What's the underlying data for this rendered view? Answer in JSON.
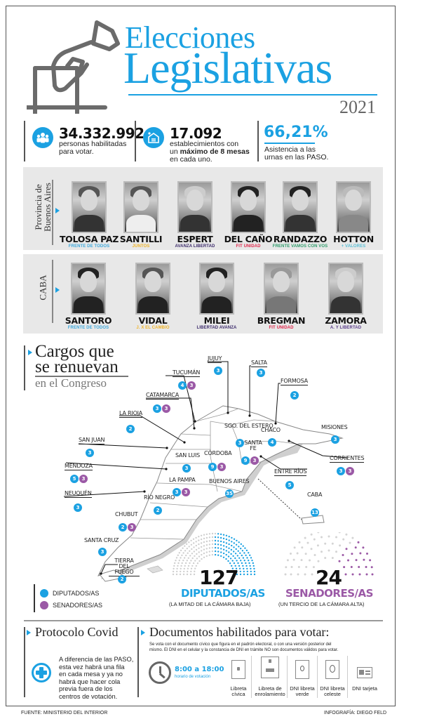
{
  "header": {
    "title_line1": "Elecciones",
    "title_line2": "Legislativas",
    "year": "2021",
    "icon": "ballot-box-hand-icon"
  },
  "stats": [
    {
      "icon": "people-icon",
      "value": "34.332.992",
      "text_lines": [
        "personas habilitadas",
        "para votar."
      ]
    },
    {
      "icon": "school-building-icon",
      "value": "17.092",
      "text_lines": [
        "establecimientos con"
      ],
      "text_pre": "un ",
      "text_bold": "máximo de 8 mesas",
      "text_post": "en cada uno."
    },
    {
      "value": "66,21%",
      "text_lines": [
        "Asistencia a las",
        "urnas en las PASO."
      ]
    }
  ],
  "panels": {
    "pba": {
      "label_line1": "Provincia de",
      "label_line2": "Buenos Aires",
      "candidates": [
        {
          "name": "TOLOSA PAZ",
          "party": "FRENTE DE TODOS",
          "color": "#3fa9dc"
        },
        {
          "name": "SANTILLI",
          "party": "JUNTOS",
          "color": "#f0b429"
        },
        {
          "name": "ESPERT",
          "party": "AVANZA LIBERTAD",
          "color": "#3b2a6b"
        },
        {
          "name": "DEL CAÑO",
          "party": "FIT UNIDAD",
          "color": "#e0274b"
        },
        {
          "name": "RANDAZZO",
          "party": "FRENTE VAMOS CON VOS",
          "color": "#2e9c6b"
        },
        {
          "name": "HOTTON",
          "party": "+ VALORES",
          "color": "#5bc0d6"
        }
      ]
    },
    "caba": {
      "label": "CABA",
      "candidates": [
        {
          "name": "SANTORO",
          "party": "FRENTE DE TODOS",
          "color": "#3fa9dc"
        },
        {
          "name": "VIDAL",
          "party": "J. X EL CAMBIO",
          "color": "#f0b429"
        },
        {
          "name": "MILEI",
          "party": "LIBERTAD AVANZA",
          "color": "#3b2a6b"
        },
        {
          "name": "BREGMAN",
          "party": "FIT UNIDAD",
          "color": "#e0274b"
        },
        {
          "name": "ZAMORA",
          "party": "A. Y LIBERTAD",
          "color": "#5a3d8a"
        }
      ]
    }
  },
  "cargos": {
    "title_line1": "Cargos que",
    "title_line2": "se renuevan",
    "subtitle": "en el Congreso"
  },
  "provinces": [
    {
      "name": "JUJUY",
      "diputados": 3,
      "senadores": null
    },
    {
      "name": "SALTA",
      "diputados": 3,
      "senadores": null
    },
    {
      "name": "TUCUMÁN",
      "diputados": 4,
      "senadores": 3
    },
    {
      "name": "FORMOSA",
      "diputados": 2,
      "senadores": null
    },
    {
      "name": "CATAMARCA",
      "diputados": 3,
      "senadores": 3
    },
    {
      "name": "LA RIOJA",
      "diputados": 2,
      "senadores": null
    },
    {
      "name": "SGO. DEL ESTERO",
      "diputados": 3,
      "senadores": null
    },
    {
      "name": "CHACO",
      "diputados": 4,
      "senadores": null
    },
    {
      "name": "MISIONES",
      "diputados": 3,
      "senadores": null
    },
    {
      "name": "SAN JUAN",
      "diputados": 3,
      "senadores": null
    },
    {
      "name": "SANTA FE",
      "diputados": 9,
      "senadores": 3
    },
    {
      "name": "CORRIENTES",
      "diputados": 3,
      "senadores": 3
    },
    {
      "name": "MENDOZA",
      "diputados": 5,
      "senadores": 3
    },
    {
      "name": "SAN LUIS",
      "diputados": 3,
      "senadores": null
    },
    {
      "name": "CÓRDOBA",
      "diputados": 9,
      "senadores": 3
    },
    {
      "name": "ENTRE RÍOS",
      "diputados": 5,
      "senadores": null
    },
    {
      "name": "LA PAMPA",
      "diputados": 3,
      "senadores": 3
    },
    {
      "name": "BUENOS AIRES",
      "diputados": 35,
      "senadores": null
    },
    {
      "name": "CABA",
      "diputados": 13,
      "senadores": null
    },
    {
      "name": "NEUQUÉN",
      "diputados": 3,
      "senadores": null
    },
    {
      "name": "RÍO NEGRO",
      "diputados": 2,
      "senadores": null
    },
    {
      "name": "CHUBUT",
      "diputados": 2,
      "senadores": 3
    },
    {
      "name": "SANTA CRUZ",
      "diputados": 3,
      "senadores": null
    },
    {
      "name": "TIERRA DEL FUEGO",
      "diputados": 2,
      "senadores": null
    }
  ],
  "legend": [
    {
      "label": "DIPUTADOS/AS",
      "color": "#1ba1e2"
    },
    {
      "label": "SENADORES/AS",
      "color": "#9b59a6"
    }
  ],
  "chambers": {
    "diputados": {
      "number": "127",
      "label": "DIPUTADOS/AS",
      "sub": "(LA MITAD DE LA CÁMARA BAJA)",
      "color": "#1ba1e2"
    },
    "senadores": {
      "number": "24",
      "label": "SENADORES/AS",
      "sub": "(UN TERCIO DE LA CÁMARA ALTA)",
      "color": "#9b59a6"
    }
  },
  "covid": {
    "title": "Protocolo Covid",
    "icon": "medical-cross-icon",
    "text_lines": [
      "A diferencia de las PASO,",
      "esta vez habrá una fila",
      "en cada mesa y ya no",
      "habrá que hacer cola",
      "previa fuera de los",
      "centros de votación."
    ]
  },
  "documentos": {
    "title": "Documentos habilitados para votar:",
    "intro_line1": "Se vota con el documento cívico que figura en el padrón electoral, o con una versión posterior del",
    "intro_line2": "mismo. El DNI en el celular y la constancia de DNI en trámite NO son documentos válidos para votar.",
    "hours": "8:00 a 18:00",
    "hours_label": "horario de votación",
    "clock_icon": "clock-icon",
    "items": [
      {
        "line1": "Libreta",
        "line2": "cívica"
      },
      {
        "line1": "Libreta de",
        "line2": "enrolamiento"
      },
      {
        "line1": "DNI libreta",
        "line2": "verde"
      },
      {
        "line1": "DNI libreta",
        "line2": "celeste"
      },
      {
        "line1": "DNI tarjeta",
        "line2": ""
      }
    ]
  },
  "footer": {
    "source": "FUENTE: MINISTERIO DEL INTERIOR",
    "credit": "INFOGRAFÍA: DIEGO FELD"
  }
}
